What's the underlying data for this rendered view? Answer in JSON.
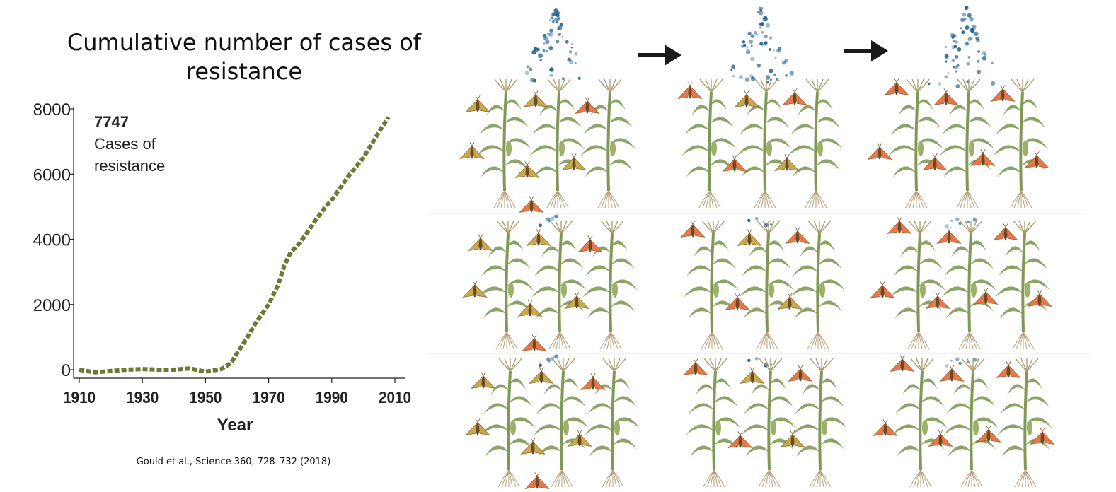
{
  "title": "Cumulative number of cases of resistance",
  "citation": "Gould et al., Science  360, 728–732 (2018)",
  "colors": {
    "line": "#6b7a34",
    "moth_tan": "#c9a94a",
    "moth_orange": "#e8784a",
    "plant": "#7f9a56",
    "spray": "#1f5f8b",
    "arrow": "#1a1a1a"
  },
  "chart_data": {
    "type": "line",
    "xlabel": "Year",
    "ylabel": "",
    "xlim": [
      1910,
      2010
    ],
    "ylim": [
      0,
      8000
    ],
    "xticks": [
      "1910",
      "1930",
      "1950",
      "1970",
      "1990",
      "2010"
    ],
    "yticks": [
      "8000",
      "6000",
      "4000",
      "2000",
      "0"
    ],
    "annotation": {
      "value": "7747",
      "text": "Cases of resistance"
    },
    "series": [
      {
        "x": [
          1910,
          1915,
          1920,
          1925,
          1930,
          1935,
          1940,
          1945,
          1950,
          1955,
          1958,
          1960,
          1963,
          1966,
          1970,
          1973,
          1975,
          1977,
          1980,
          1985,
          1988,
          1990,
          1995,
          2000,
          2005,
          2008
        ],
        "values": [
          0,
          -80,
          -40,
          0,
          20,
          0,
          0,
          40,
          -60,
          20,
          200,
          500,
          950,
          1450,
          2000,
          2600,
          3200,
          3600,
          3900,
          4600,
          5000,
          5200,
          5900,
          6500,
          7300,
          7747
        ]
      }
    ]
  }
}
